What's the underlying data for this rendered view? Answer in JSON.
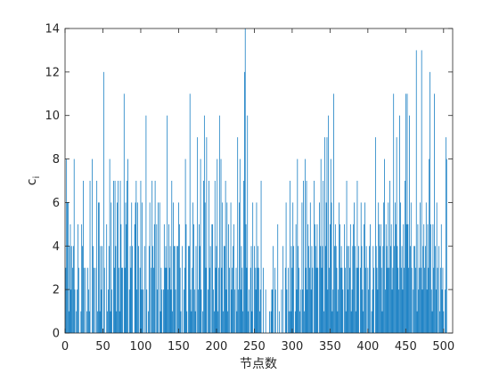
{
  "chart_data": {
    "type": "bar",
    "title": "",
    "xlabel": "节点数",
    "ylabel": {
      "base": "c",
      "sub": "i"
    },
    "xlim": [
      0,
      512
    ],
    "ylim": [
      0,
      14
    ],
    "xticks": [
      0,
      50,
      100,
      150,
      200,
      250,
      300,
      350,
      400,
      450,
      500
    ],
    "xtick_labels": [
      "0",
      "50",
      "100",
      "150",
      "200",
      "250",
      "300",
      "350",
      "400",
      "450",
      "500"
    ],
    "yticks": [
      0,
      2,
      4,
      6,
      8,
      10,
      12,
      14
    ],
    "ytick_labels": [
      "0",
      "2",
      "4",
      "6",
      "8",
      "10",
      "12",
      "14"
    ],
    "grid": false,
    "box": true,
    "bar_color": "#0072BD",
    "axis_color": "#262626",
    "x_start": 1,
    "values": [
      3,
      8,
      6,
      6,
      1,
      4,
      5,
      2,
      4,
      3,
      4,
      8,
      2,
      0,
      1,
      2,
      5,
      3,
      0,
      0,
      1,
      5,
      4,
      7,
      3,
      0,
      3,
      0,
      1,
      3,
      2,
      1,
      7,
      0,
      0,
      8,
      4,
      3,
      0,
      3,
      0,
      7,
      1,
      6,
      6,
      1,
      4,
      2,
      4,
      0,
      12,
      3,
      0,
      0,
      5,
      1,
      2,
      4,
      8,
      1,
      6,
      2,
      0,
      7,
      3,
      7,
      4,
      1,
      6,
      7,
      3,
      1,
      7,
      5,
      3,
      3,
      0,
      11,
      3,
      6,
      5,
      7,
      8,
      0,
      2,
      4,
      3,
      6,
      4,
      0,
      0,
      5,
      6,
      7,
      2,
      6,
      4,
      0,
      3,
      7,
      2,
      6,
      2,
      0,
      4,
      0,
      10,
      2,
      0,
      1,
      4,
      6,
      0,
      3,
      7,
      4,
      3,
      5,
      7,
      0,
      5,
      2,
      6,
      0,
      6,
      1,
      3,
      2,
      0,
      2,
      5,
      3,
      4,
      3,
      10,
      2,
      5,
      3,
      4,
      2,
      7,
      1,
      6,
      4,
      4,
      2,
      0,
      4,
      4,
      6,
      5,
      3,
      1,
      0,
      4,
      0,
      2,
      3,
      8,
      5,
      1,
      0,
      4,
      4,
      11,
      2,
      1,
      3,
      6,
      5,
      2,
      1,
      4,
      0,
      9,
      2,
      5,
      4,
      8,
      2,
      0,
      1,
      7,
      10,
      6,
      3,
      9,
      0,
      2,
      7,
      3,
      4,
      0,
      5,
      5,
      2,
      1,
      7,
      3,
      4,
      8,
      1,
      3,
      10,
      0,
      8,
      3,
      6,
      1,
      4,
      4,
      7,
      2,
      6,
      1,
      5,
      3,
      0,
      6,
      2,
      3,
      4,
      5,
      2,
      0,
      3,
      1,
      9,
      2,
      6,
      8,
      2,
      4,
      3,
      1,
      7,
      12,
      14,
      5,
      3,
      10,
      1,
      2,
      0,
      3,
      4,
      1,
      6,
      0,
      4,
      3,
      2,
      6,
      3,
      4,
      3,
      1,
      2,
      7,
      0,
      0,
      3,
      0,
      0,
      2,
      0,
      0,
      0,
      0,
      1,
      0,
      1,
      2,
      2,
      4,
      0,
      3,
      2,
      0,
      0,
      5,
      0,
      1,
      0,
      0,
      2,
      0,
      4,
      0,
      0,
      3,
      6,
      2,
      0,
      3,
      1,
      7,
      1,
      4,
      3,
      6,
      4,
      0,
      1,
      5,
      2,
      8,
      4,
      3,
      1,
      2,
      0,
      6,
      2,
      7,
      1,
      8,
      3,
      7,
      2,
      5,
      4,
      3,
      6,
      2,
      4,
      3,
      0,
      7,
      5,
      4,
      3,
      5,
      3,
      0,
      6,
      4,
      8,
      3,
      4,
      7,
      1,
      9,
      4,
      6,
      9,
      2,
      10,
      3,
      5,
      8,
      6,
      1,
      2,
      11,
      4,
      5,
      4,
      3,
      1,
      2,
      6,
      5,
      3,
      4,
      3,
      2,
      0,
      5,
      3,
      1,
      7,
      4,
      2,
      4,
      3,
      5,
      1,
      2,
      4,
      5,
      6,
      4,
      1,
      3,
      7,
      3,
      4,
      0,
      3,
      6,
      4,
      2,
      1,
      5,
      6,
      3,
      4,
      0,
      3,
      2,
      4,
      5,
      0,
      1,
      2,
      4,
      3,
      0,
      9,
      4,
      3,
      2,
      6,
      5,
      4,
      5,
      3,
      1,
      4,
      6,
      8,
      2,
      5,
      4,
      3,
      6,
      3,
      7,
      4,
      5,
      2,
      3,
      11,
      4,
      6,
      5,
      9,
      4,
      3,
      2,
      10,
      6,
      3,
      4,
      2,
      5,
      3,
      7,
      11,
      5,
      11,
      5,
      3,
      10,
      4,
      6,
      3,
      0,
      2,
      4,
      4,
      3,
      13,
      1,
      5,
      2,
      3,
      6,
      3,
      13,
      2,
      4,
      5,
      3,
      4,
      6,
      2,
      5,
      3,
      8,
      12,
      5,
      2,
      1,
      5,
      3,
      11,
      4,
      2,
      6,
      3,
      0,
      4,
      1,
      3,
      5,
      2,
      3,
      1,
      0,
      2,
      9,
      8
    ]
  }
}
